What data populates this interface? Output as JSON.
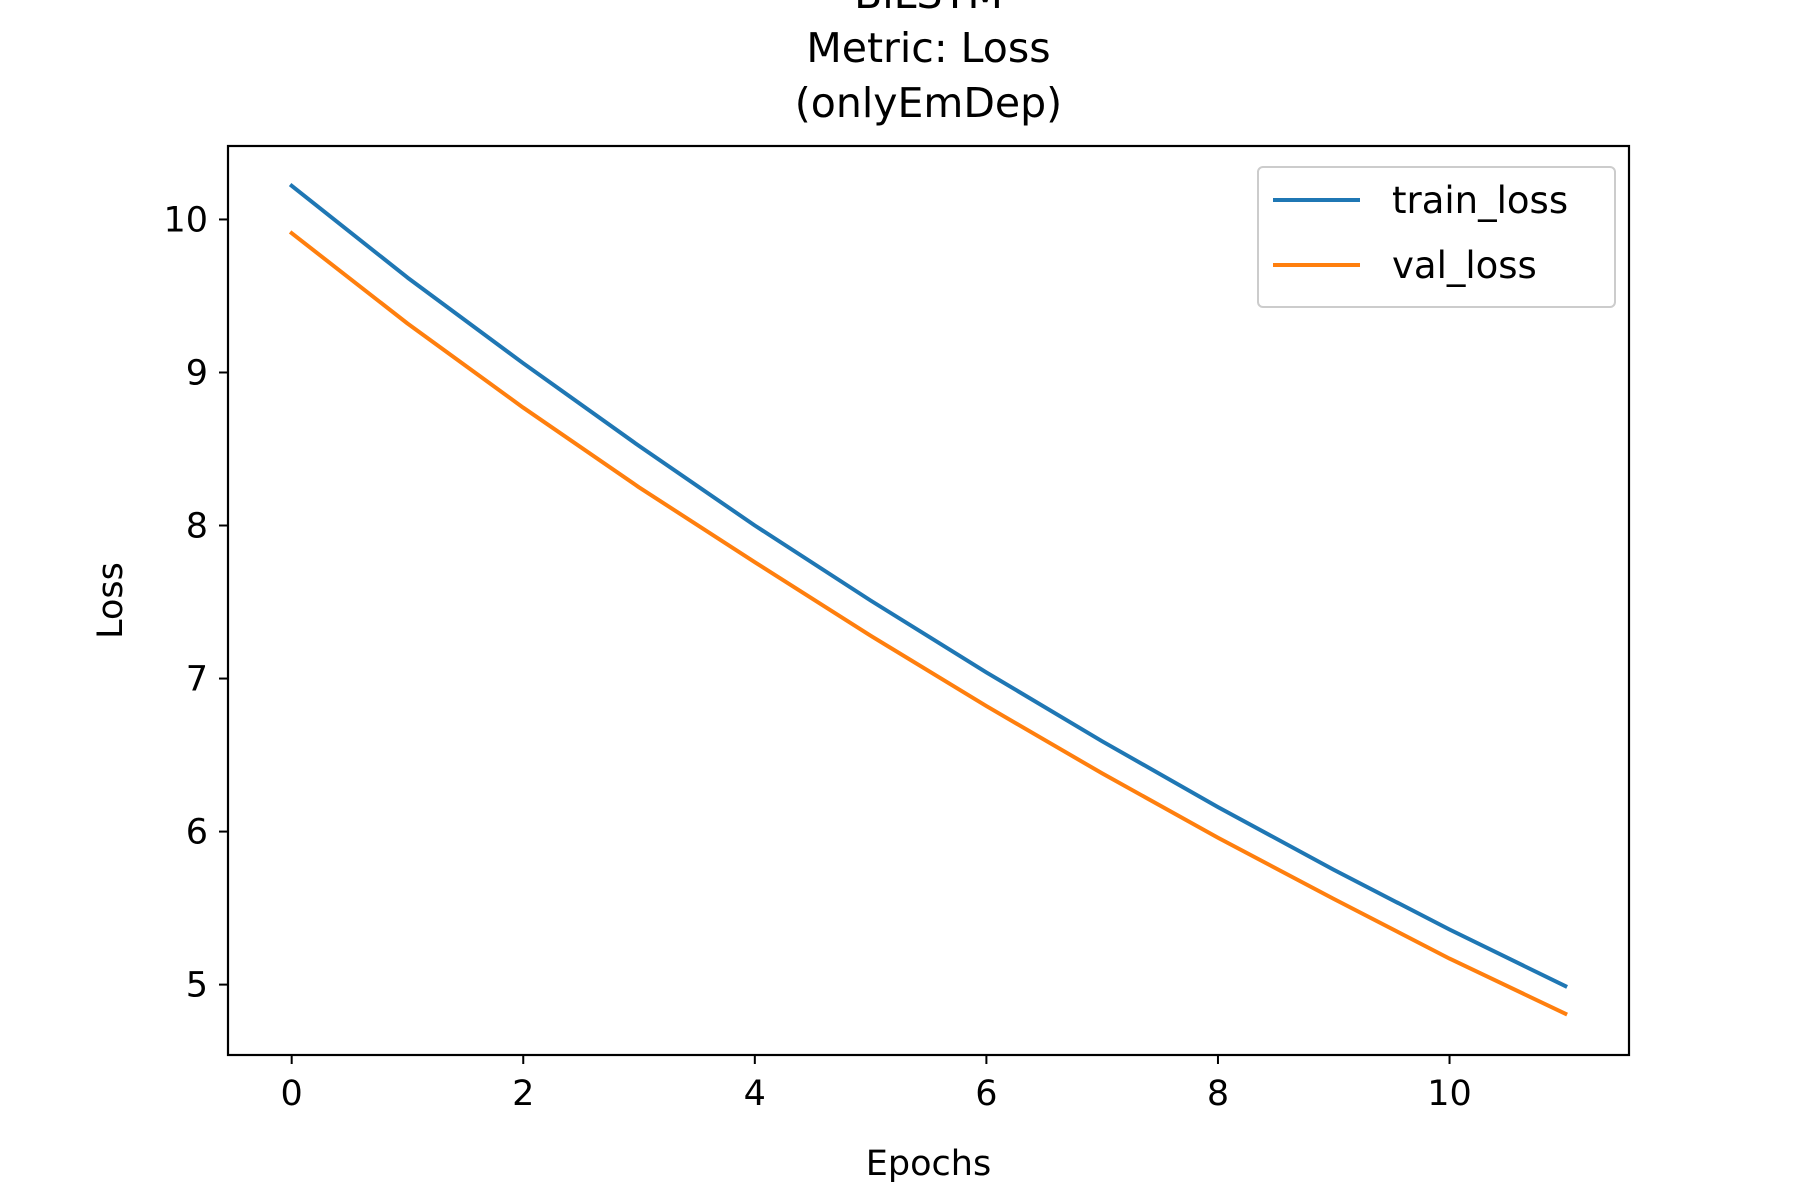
{
  "chart_data": {
    "type": "line",
    "title_lines": [
      "BiLSTM",
      "Metric: Loss",
      "(onlyEmDep)"
    ],
    "xlabel": "Epochs",
    "ylabel": "Loss",
    "xlim": [
      -0.55,
      11.55
    ],
    "ylim": [
      4.54,
      10.48
    ],
    "xticks": [
      0,
      2,
      4,
      6,
      8,
      10
    ],
    "yticks": [
      5,
      6,
      7,
      8,
      9,
      10
    ],
    "x": [
      0,
      1,
      2,
      3,
      4,
      5,
      6,
      7,
      8,
      9,
      10,
      11
    ],
    "series": [
      {
        "name": "train_loss",
        "color": "#1f77b4",
        "values": [
          10.22,
          9.62,
          9.06,
          8.52,
          8.0,
          7.51,
          7.04,
          6.59,
          6.16,
          5.75,
          5.36,
          4.99
        ]
      },
      {
        "name": "val_loss",
        "color": "#ff7f0e",
        "values": [
          9.91,
          9.32,
          8.77,
          8.25,
          7.76,
          7.28,
          6.82,
          6.38,
          5.96,
          5.56,
          5.17,
          4.81
        ]
      }
    ],
    "legend_position": "upper right",
    "grid": false
  }
}
